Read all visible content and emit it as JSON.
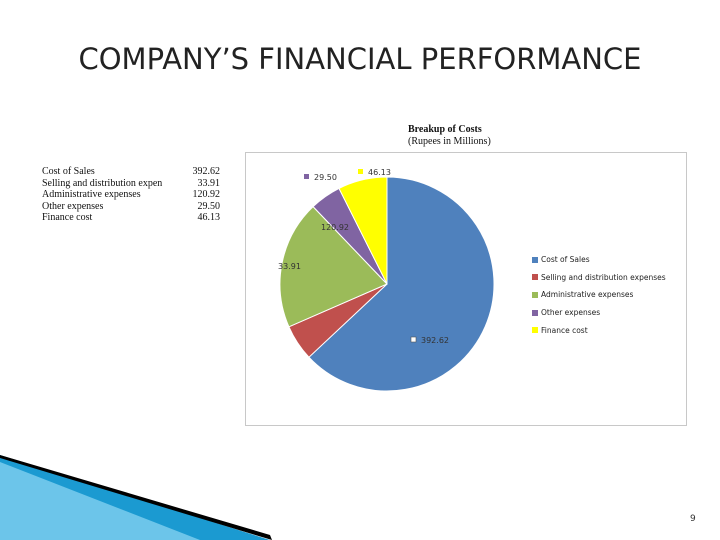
{
  "slide": {
    "title": "COMPANY’S FINANCIAL PERFORMANCE",
    "page_number": "9"
  },
  "table": {
    "rows": [
      {
        "label": "Cost of Sales",
        "value": "392.62"
      },
      {
        "label": "Selling and distribution expen",
        "value": "33.91"
      },
      {
        "label": "Administrative expenses",
        "value": "120.92"
      },
      {
        "label": "Other expenses",
        "value": "29.50"
      },
      {
        "label": "Finance cost",
        "value": "46.13"
      }
    ]
  },
  "chart_data": {
    "type": "pie",
    "title": "Breakup of Costs",
    "subtitle": "(Rupees in Millions)",
    "categories": [
      "Cost of Sales",
      "Selling and distribution expenses",
      "Administrative expenses",
      "Other expenses",
      "Finance cost"
    ],
    "values": [
      392.62,
      33.91,
      120.92,
      29.5,
      46.13
    ],
    "data_labels": [
      "392.62",
      "33.91",
      "120.92",
      "29.50",
      "46.13"
    ],
    "colors": [
      "#4f81bd",
      "#c0504d",
      "#9bbb59",
      "#8064a2",
      "#ffff00"
    ],
    "legend_position": "right"
  },
  "decoration": {
    "colors": [
      "#1b9ad1",
      "#6cc5ea",
      "#000000"
    ]
  }
}
